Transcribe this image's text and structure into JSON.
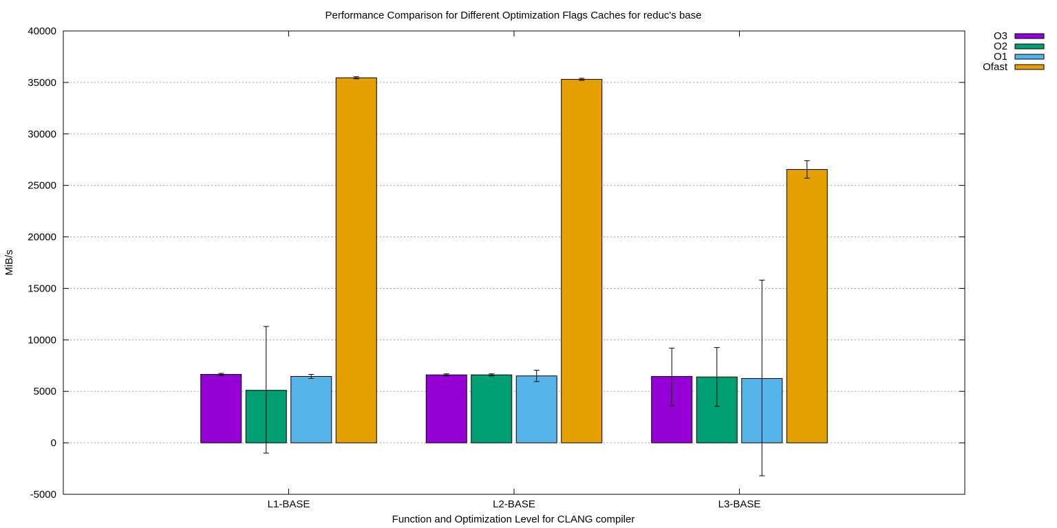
{
  "chart_data": {
    "type": "bar",
    "title": "Performance Comparison for Different Optimization Flags  Caches for reduc's base",
    "xlabel": "Function and Optimization Level for CLANG compiler",
    "ylabel": "MiB/s",
    "ylim": [
      -5000,
      40000
    ],
    "yticks": [
      -5000,
      0,
      5000,
      10000,
      15000,
      20000,
      25000,
      30000,
      35000,
      40000
    ],
    "grid": true,
    "legend_position": "top-right-outside",
    "categories": [
      "L1-BASE",
      "L2-BASE",
      "L3-BASE"
    ],
    "series": [
      {
        "name": "O3",
        "color": "#9400d3",
        "values": [
          6650,
          6600,
          6450
        ],
        "err_low": [
          6550,
          6500,
          3600
        ],
        "err_high": [
          6750,
          6700,
          9200
        ]
      },
      {
        "name": "O2",
        "color": "#009e73",
        "values": [
          5100,
          6600,
          6400
        ],
        "err_low": [
          -1000,
          6500,
          3550
        ],
        "err_high": [
          11300,
          6700,
          9250
        ]
      },
      {
        "name": "O1",
        "color": "#56b4e9",
        "values": [
          6450,
          6500,
          6250
        ],
        "err_low": [
          6250,
          5950,
          -3200
        ],
        "err_high": [
          6650,
          7050,
          15800
        ]
      },
      {
        "name": "Ofast",
        "color": "#e69f00",
        "values": [
          35450,
          35300,
          26550
        ],
        "err_low": [
          35350,
          35200,
          25700
        ],
        "err_high": [
          35550,
          35400,
          27400
        ]
      }
    ]
  }
}
